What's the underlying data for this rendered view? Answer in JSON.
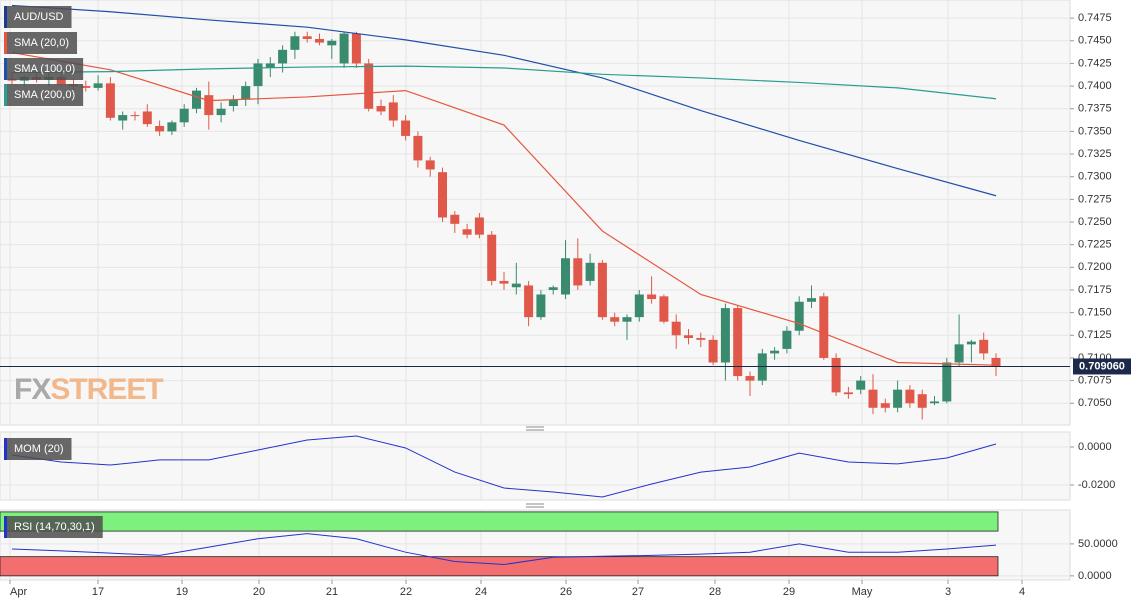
{
  "chart_data": [
    {
      "type": "candlestick",
      "title": "AUD/USD",
      "ylim": [
        0.7026,
        0.7495
      ],
      "yticks": [
        {
          "value": 0.7475,
          "label": "0.7475"
        },
        {
          "value": 0.745,
          "label": "0.7450"
        },
        {
          "value": 0.7425,
          "label": "0.7425"
        },
        {
          "value": 0.74,
          "label": "0.7400"
        },
        {
          "value": 0.7375,
          "label": "0.7375"
        },
        {
          "value": 0.735,
          "label": "0.7350"
        },
        {
          "value": 0.7325,
          "label": "0.7325"
        },
        {
          "value": 0.73,
          "label": "0.7300"
        },
        {
          "value": 0.7275,
          "label": "0.7275"
        },
        {
          "value": 0.725,
          "label": "0.7250"
        },
        {
          "value": 0.7225,
          "label": "0.7225"
        },
        {
          "value": 0.72,
          "label": "0.7200"
        },
        {
          "value": 0.7175,
          "label": "0.7175"
        },
        {
          "value": 0.715,
          "label": "0.7150"
        },
        {
          "value": 0.7125,
          "label": "0.7125"
        },
        {
          "value": 0.71,
          "label": "0.7100"
        },
        {
          "value": 0.7075,
          "label": "0.7075"
        },
        {
          "value": 0.705,
          "label": "0.7050"
        }
      ],
      "up_color": "#3a8a6e",
      "down_color": "#e0584a",
      "ohlc": [
        [
          0.7408,
          0.7415,
          0.7402,
          0.7406
        ],
        [
          0.7406,
          0.7412,
          0.74,
          0.741
        ],
        [
          0.741,
          0.7415,
          0.7404,
          0.7407
        ],
        [
          0.7407,
          0.7414,
          0.74,
          0.741
        ],
        [
          0.741,
          0.7418,
          0.74,
          0.7402
        ],
        [
          0.7402,
          0.7408,
          0.7396,
          0.74
        ],
        [
          0.74,
          0.7406,
          0.7394,
          0.7398
        ],
        [
          0.7398,
          0.7412,
          0.7395,
          0.7403
        ],
        [
          0.7403,
          0.741,
          0.7362,
          0.7365
        ],
        [
          0.7362,
          0.7372,
          0.7352,
          0.7368
        ],
        [
          0.7368,
          0.7372,
          0.7362,
          0.7367
        ],
        [
          0.7372,
          0.738,
          0.7355,
          0.7358
        ],
        [
          0.7356,
          0.7362,
          0.7345,
          0.735
        ],
        [
          0.735,
          0.7362,
          0.7346,
          0.736
        ],
        [
          0.736,
          0.738,
          0.7355,
          0.7375
        ],
        [
          0.7375,
          0.7398,
          0.737,
          0.7395
        ],
        [
          0.739,
          0.7405,
          0.7352,
          0.7368
        ],
        [
          0.7368,
          0.7382,
          0.736,
          0.7375
        ],
        [
          0.7378,
          0.739,
          0.7372,
          0.7385
        ],
        [
          0.7385,
          0.7405,
          0.7378,
          0.74
        ],
        [
          0.74,
          0.743,
          0.738,
          0.7425
        ],
        [
          0.742,
          0.7432,
          0.741,
          0.7425
        ],
        [
          0.7425,
          0.7445,
          0.7415,
          0.744
        ],
        [
          0.744,
          0.746,
          0.743,
          0.7455
        ],
        [
          0.7455,
          0.746,
          0.7448,
          0.7452
        ],
        [
          0.7452,
          0.7458,
          0.7445,
          0.7448
        ],
        [
          0.7445,
          0.7452,
          0.743,
          0.745
        ],
        [
          0.7425,
          0.746,
          0.742,
          0.7458
        ],
        [
          0.7458,
          0.746,
          0.742,
          0.7425
        ],
        [
          0.7425,
          0.743,
          0.7372,
          0.7375
        ],
        [
          0.7378,
          0.7385,
          0.7368,
          0.7372
        ],
        [
          0.7382,
          0.739,
          0.7355,
          0.7362
        ],
        [
          0.7362,
          0.7368,
          0.734,
          0.7345
        ],
        [
          0.7345,
          0.735,
          0.731,
          0.7318
        ],
        [
          0.7318,
          0.7322,
          0.73,
          0.7308
        ],
        [
          0.7305,
          0.731,
          0.725,
          0.7255
        ],
        [
          0.7258,
          0.7262,
          0.7238,
          0.7248
        ],
        [
          0.7242,
          0.7248,
          0.7232,
          0.7236
        ],
        [
          0.7255,
          0.726,
          0.7232,
          0.7236
        ],
        [
          0.7236,
          0.724,
          0.718,
          0.7185
        ],
        [
          0.7185,
          0.7195,
          0.7175,
          0.7182
        ],
        [
          0.7178,
          0.7205,
          0.717,
          0.7182
        ],
        [
          0.718,
          0.7185,
          0.7135,
          0.7145
        ],
        [
          0.7145,
          0.7175,
          0.7142,
          0.717
        ],
        [
          0.7175,
          0.718,
          0.717,
          0.7178
        ],
        [
          0.717,
          0.723,
          0.7165,
          0.721
        ],
        [
          0.721,
          0.7232,
          0.7175,
          0.718
        ],
        [
          0.7185,
          0.7215,
          0.718,
          0.7205
        ],
        [
          0.7205,
          0.7208,
          0.7142,
          0.7145
        ],
        [
          0.7145,
          0.715,
          0.7135,
          0.714
        ],
        [
          0.714,
          0.7148,
          0.712,
          0.7145
        ],
        [
          0.7145,
          0.7175,
          0.714,
          0.717
        ],
        [
          0.717,
          0.719,
          0.716,
          0.7165
        ],
        [
          0.7168,
          0.717,
          0.7138,
          0.714
        ],
        [
          0.714,
          0.7148,
          0.711,
          0.7125
        ],
        [
          0.7125,
          0.7132,
          0.7115,
          0.7122
        ],
        [
          0.7122,
          0.7128,
          0.7112,
          0.712
        ],
        [
          0.712,
          0.7125,
          0.7092,
          0.7095
        ],
        [
          0.7095,
          0.716,
          0.7075,
          0.7155
        ],
        [
          0.7155,
          0.7158,
          0.7075,
          0.708
        ],
        [
          0.708,
          0.7085,
          0.7058,
          0.7075
        ],
        [
          0.7075,
          0.711,
          0.707,
          0.7105
        ],
        [
          0.7105,
          0.7112,
          0.7098,
          0.7108
        ],
        [
          0.711,
          0.7135,
          0.7105,
          0.713
        ],
        [
          0.713,
          0.7168,
          0.7125,
          0.7162
        ],
        [
          0.7162,
          0.718,
          0.7155,
          0.7166
        ],
        [
          0.7168,
          0.7172,
          0.7098,
          0.71
        ],
        [
          0.71,
          0.7105,
          0.7058,
          0.7062
        ],
        [
          0.7062,
          0.7068,
          0.7055,
          0.706
        ],
        [
          0.7065,
          0.708,
          0.706,
          0.7075
        ],
        [
          0.7065,
          0.7082,
          0.7038,
          0.7045
        ],
        [
          0.705,
          0.7055,
          0.704,
          0.7045
        ],
        [
          0.7045,
          0.7075,
          0.704,
          0.7065
        ],
        [
          0.7065,
          0.707,
          0.7045,
          0.705
        ],
        [
          0.706,
          0.7065,
          0.7032,
          0.7045
        ],
        [
          0.705,
          0.7058,
          0.7048,
          0.7052
        ],
        [
          0.7052,
          0.71,
          0.705,
          0.7095
        ],
        [
          0.7095,
          0.7148,
          0.709,
          0.7115
        ],
        [
          0.7115,
          0.712,
          0.7095,
          0.7118
        ],
        [
          0.712,
          0.7128,
          0.7098,
          0.7105
        ],
        [
          0.71,
          0.7105,
          0.708,
          0.709
        ]
      ],
      "series": [
        {
          "name": "SMA (20,0)",
          "color": "#e8553d",
          "x": [
            0,
            8,
            16,
            24,
            32,
            40,
            48,
            56,
            64,
            72,
            80
          ],
          "values": [
            0.7437,
            0.7418,
            0.7384,
            0.7388,
            0.7395,
            0.7357,
            0.724,
            0.717,
            0.7138,
            0.7095,
            0.7092
          ]
        },
        {
          "name": "SMA (100,0)",
          "color": "#1f4fa8",
          "x": [
            0,
            8,
            16,
            24,
            32,
            40,
            48,
            56,
            64,
            72,
            80
          ],
          "values": [
            0.7489,
            0.7482,
            0.7473,
            0.7465,
            0.7451,
            0.7434,
            0.7409,
            0.7373,
            0.734,
            0.7309,
            0.7279
          ]
        },
        {
          "name": "SMA (200,0)",
          "color": "#2a9d8f",
          "x": [
            0,
            8,
            16,
            24,
            32,
            40,
            48,
            56,
            64,
            72,
            80
          ],
          "values": [
            0.7415,
            0.7416,
            0.7419,
            0.7421,
            0.7422,
            0.742,
            0.7413,
            0.7409,
            0.7404,
            0.7398,
            0.7386
          ]
        }
      ],
      "current_price": {
        "value": 0.70906,
        "label": "0.709060",
        "color": "#1b2a4a"
      },
      "watermark": {
        "left": "FX",
        "right": "STREET"
      }
    },
    {
      "type": "line",
      "ylim": [
        -0.0279,
        0.0079
      ],
      "yticks": [
        {
          "value": 0,
          "label": "0.0000"
        },
        {
          "value": -0.02,
          "label": "-0.0200"
        }
      ],
      "series": [
        {
          "name": "MOM (20)",
          "color": "#2233cc",
          "x": [
            0,
            4,
            8,
            12,
            16,
            20,
            24,
            28,
            32,
            36,
            40,
            44,
            48,
            52,
            56,
            60,
            64,
            68,
            72,
            76,
            80
          ],
          "values": [
            -0.0042,
            -0.0079,
            -0.0095,
            -0.0068,
            -0.0068,
            -0.0016,
            0.0037,
            0.0058,
            -0.0005,
            -0.0132,
            -0.0216,
            -0.0237,
            -0.0263,
            -0.0195,
            -0.0132,
            -0.0105,
            -0.0032,
            -0.0079,
            -0.0089,
            -0.0058,
            0.0016
          ]
        }
      ]
    },
    {
      "type": "line",
      "ylim": [
        -6.5,
        103
      ],
      "yticks": [
        {
          "value": 50,
          "label": "50.0000"
        },
        {
          "value": 0,
          "label": "0.0000"
        }
      ],
      "bands": [
        {
          "from": 70,
          "to": 100,
          "color": "#7ef07e"
        },
        {
          "from": 0,
          "to": 30,
          "color": "#f36f6f"
        }
      ],
      "series": [
        {
          "name": "RSI (14,70,30,1)",
          "color": "#2233cc",
          "x": [
            0,
            4,
            8,
            12,
            16,
            20,
            24,
            28,
            32,
            36,
            40,
            44,
            48,
            52,
            56,
            60,
            64,
            68,
            72,
            76,
            80
          ],
          "values": [
            42,
            39,
            35.5,
            32,
            45,
            58,
            66,
            58,
            37,
            22.5,
            17.7,
            29,
            30.6,
            32,
            34,
            37,
            50,
            37,
            37,
            42,
            48
          ]
        }
      ],
      "x_labels": [
        "Apr",
        "17",
        "19",
        "20",
        "21",
        "22",
        "24",
        "26",
        "27",
        "28",
        "29",
        "May",
        "3",
        "4"
      ]
    }
  ]
}
